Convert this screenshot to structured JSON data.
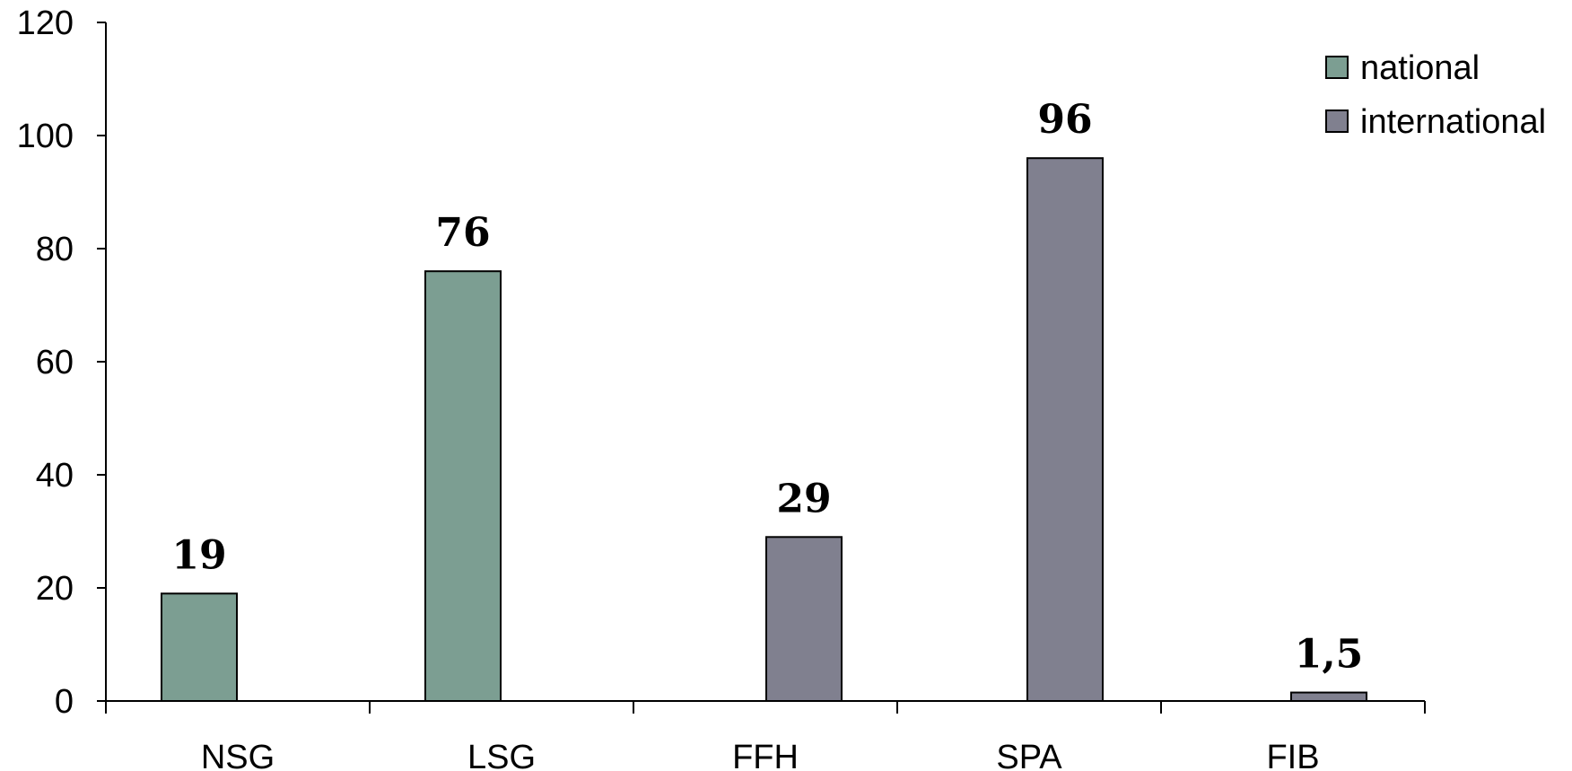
{
  "chart_data": {
    "type": "bar",
    "categories": [
      "NSG",
      "LSG",
      "FFH",
      "SPA",
      "FIB"
    ],
    "series": [
      {
        "name": "national",
        "color": "#7c9e92",
        "values": [
          19,
          76,
          null,
          null,
          null
        ]
      },
      {
        "name": "international",
        "color": "#80808f",
        "values": [
          null,
          null,
          29,
          96,
          1.5
        ]
      }
    ],
    "data_labels": [
      "19",
      "76",
      "29",
      "96",
      "1,5"
    ],
    "y_ticks": [
      0,
      20,
      40,
      60,
      80,
      100,
      120
    ],
    "ylim": [
      0,
      120
    ],
    "legend_position": "top-right",
    "grid": false
  }
}
